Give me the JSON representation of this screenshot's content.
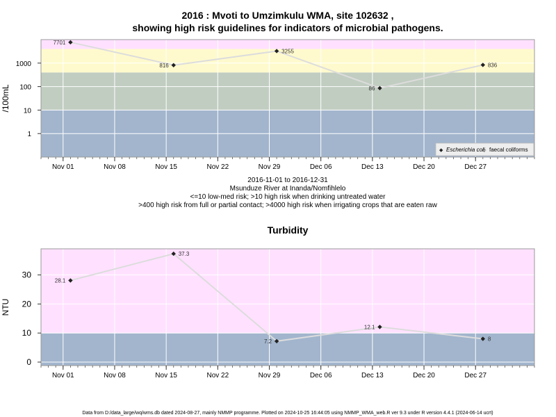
{
  "title_line1": "2016 : Mvoti to Umzimkulu WMA, site 102632 ,",
  "title_line2": "showing high risk guidelines for indicators of microbial pathogens.",
  "caption": [
    "2016-11-01 to 2016-12-31",
    "Msunduze River at Inanda/Nomfihlelo",
    "<=10 low-med risk; >10 high risk when drinking untreated water",
    ">400 high risk from full or partial contact; >4000 high risk when irrigating crops that are eaten raw"
  ],
  "footer": "Data from D:/data_large/wq/wms.db dated 2024-08-27, mainly NMMP programme. Plotted on 2024-10-25 16:44:05 using NMMP_WMA_web.R ver 9.3 under R version 4.4.1 (2024-06-14 ucrt)",
  "colors": {
    "band_blue": "#a2b5cd",
    "band_grey": "#c1cdc1",
    "band_yellow": "#fffacd",
    "band_pink": "#ffe1ff",
    "grid": "#ffffff",
    "line": "#dcdcdc",
    "point": "#222222",
    "frame": "#999999",
    "text": "#000000"
  },
  "chart_data": [
    {
      "type": "line",
      "title": "",
      "ylabel": "/100mL",
      "y_scale": "log10",
      "ylim": [
        0.1,
        10000
      ],
      "x_type": "date",
      "xlim": [
        "2016-10-29",
        "2017-01-04"
      ],
      "x_ticks": [
        "2016-11-01",
        "2016-11-08",
        "2016-11-15",
        "2016-11-22",
        "2016-11-29",
        "2016-12-06",
        "2016-12-13",
        "2016-12-20",
        "2016-12-27"
      ],
      "x_tick_labels": [
        "Nov 01",
        "Nov 08",
        "Nov 15",
        "Nov 22",
        "Nov 29",
        "Dec 06",
        "Dec 13",
        "Dec 20",
        "Dec 27"
      ],
      "y_ticks": [
        1,
        10,
        100,
        1000
      ],
      "y_tick_labels": [
        "1",
        "10",
        "100",
        "1000"
      ],
      "bands": [
        {
          "from": 0.1,
          "to": 10,
          "color": "#a2b5cd"
        },
        {
          "from": 10,
          "to": 400,
          "color": "#c1cdc1"
        },
        {
          "from": 400,
          "to": 4000,
          "color": "#fffacd"
        },
        {
          "from": 4000,
          "to": 10000,
          "color": "#ffe1ff"
        }
      ],
      "series": [
        {
          "name": "Escherichia coli",
          "marker": "diamond",
          "x": [
            "2016-11-02",
            "2016-11-16",
            "2016-11-30",
            "2016-12-14",
            "2016-12-28"
          ],
          "values": [
            7701,
            816,
            3255,
            86,
            836
          ],
          "data_labels": [
            "7701",
            "816",
            "3255",
            "86",
            "836"
          ],
          "label_side": [
            "left",
            "left",
            "right",
            "left",
            "right"
          ]
        }
      ],
      "legend": {
        "placement": "bottom-right",
        "entries": [
          {
            "marker": "◆",
            "label": "Escherichia coli",
            "italic": true
          },
          {
            "marker": "◇",
            "label": "faecal coliforms",
            "italic": false
          }
        ]
      },
      "grid": true
    },
    {
      "type": "line",
      "title": "Turbidity",
      "ylabel": "NTU",
      "y_scale": "linear",
      "ylim": [
        -1.2,
        39
      ],
      "x_type": "date",
      "xlim": [
        "2016-10-29",
        "2017-01-04"
      ],
      "x_ticks": [
        "2016-11-01",
        "2016-11-08",
        "2016-11-15",
        "2016-11-22",
        "2016-11-29",
        "2016-12-06",
        "2016-12-13",
        "2016-12-20",
        "2016-12-27"
      ],
      "x_tick_labels": [
        "Nov 01",
        "Nov 08",
        "Nov 15",
        "Nov 22",
        "Nov 29",
        "Dec 06",
        "Dec 13",
        "Dec 20",
        "Dec 27"
      ],
      "y_ticks": [
        0,
        10,
        20,
        30
      ],
      "y_tick_labels": [
        "0",
        "10",
        "20",
        "30"
      ],
      "bands": [
        {
          "from": -1.2,
          "to": 10,
          "color": "#a2b5cd"
        },
        {
          "from": 10,
          "to": 39,
          "color": "#ffe1ff"
        }
      ],
      "series": [
        {
          "name": "",
          "marker": "diamond",
          "x": [
            "2016-11-02",
            "2016-11-16",
            "2016-11-30",
            "2016-12-14",
            "2016-12-28"
          ],
          "values": [
            28.1,
            37.3,
            7.2,
            12.1,
            8
          ],
          "data_labels": [
            "28.1",
            "37.3",
            "7.2",
            "12.1",
            "8"
          ],
          "label_side": [
            "left",
            "right",
            "left",
            "left",
            "right"
          ]
        }
      ],
      "grid": true
    }
  ]
}
